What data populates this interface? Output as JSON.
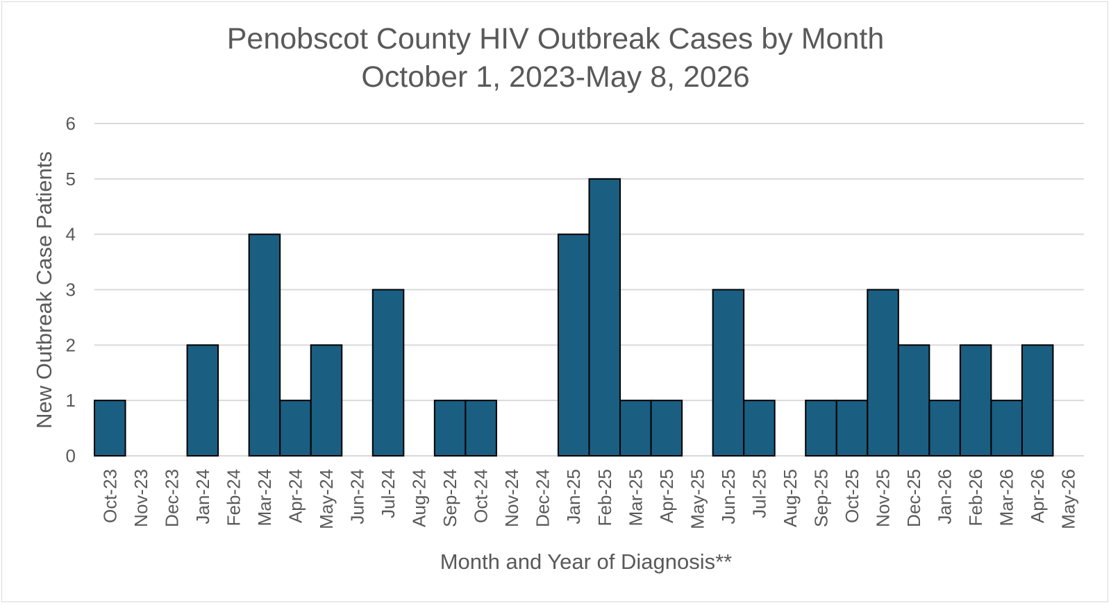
{
  "chart_data": {
    "type": "bar",
    "title": "Penobscot County HIV Outbreak Cases by Month",
    "subtitle": "October 1, 2023-May 8, 2026",
    "xlabel": "Month and Year of Diagnosis**",
    "ylabel": "New Outbreak Case Patients",
    "ylim": [
      0,
      6
    ],
    "yticks": [
      "0",
      "1",
      "2",
      "3",
      "4",
      "5",
      "6"
    ],
    "grid": true,
    "bar_color": "#1a5e82",
    "bar_edge_color": "#000000",
    "grid_color": "#d9d9d9",
    "text_color": "#595959",
    "categories": [
      "Oct-23",
      "Nov-23",
      "Dec-23",
      "Jan-24",
      "Feb-24",
      "Mar-24",
      "Apr-24",
      "May-24",
      "Jun-24",
      "Jul-24",
      "Aug-24",
      "Sep-24",
      "Oct-24",
      "Nov-24",
      "Dec-24",
      "Jan-25",
      "Feb-25",
      "Mar-25",
      "Apr-25",
      "May-25",
      "Jun-25",
      "Jul-25",
      "Aug-25",
      "Sep-25",
      "Oct-25",
      "Nov-25",
      "Dec-25",
      "Jan-26",
      "Feb-26",
      "Mar-26",
      "Apr-26",
      "May-26"
    ],
    "values": [
      1,
      0,
      0,
      2,
      0,
      4,
      1,
      2,
      0,
      3,
      0,
      1,
      1,
      0,
      0,
      4,
      5,
      1,
      1,
      0,
      3,
      1,
      0,
      1,
      1,
      3,
      2,
      1,
      2,
      1,
      2,
      0
    ]
  }
}
